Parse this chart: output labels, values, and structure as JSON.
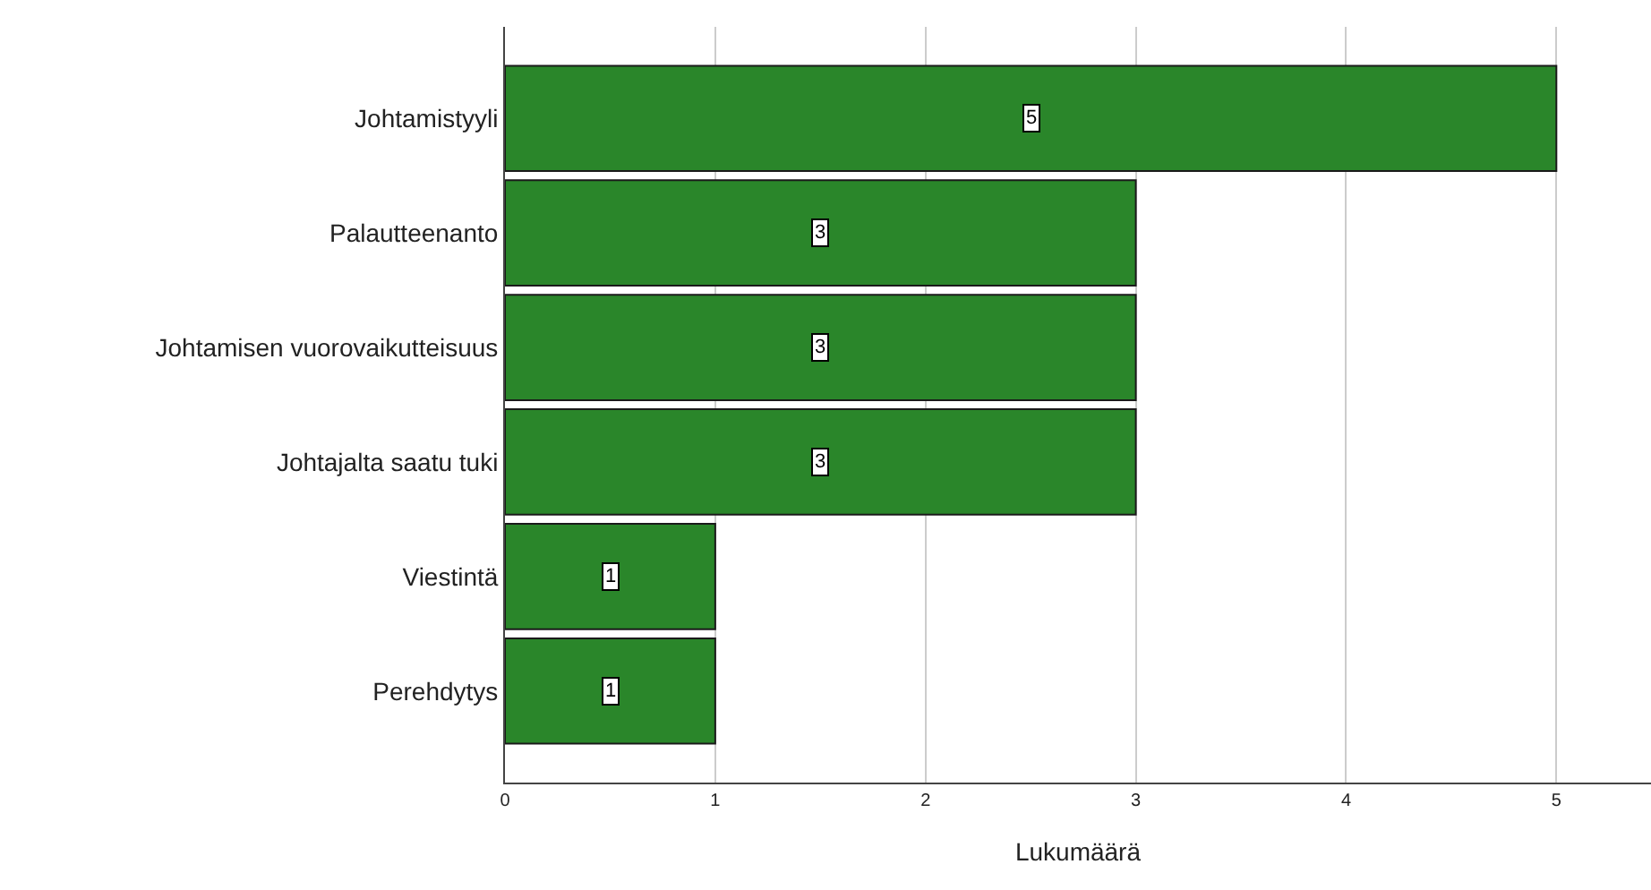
{
  "chart_data": {
    "type": "bar",
    "orientation": "horizontal",
    "xlabel": "Lukumäärä",
    "categories": [
      "Johtamistyyli",
      "Palautteenanto",
      "Johtamisen vuorovaikutteisuus",
      "Johtajalta saatu tuki",
      "Viestintä",
      "Perehdytys"
    ],
    "values": [
      5,
      3,
      3,
      3,
      1,
      1
    ],
    "color": "#2a862a",
    "xlim": [
      0,
      5.45
    ],
    "xticks": [
      0,
      1,
      2,
      3,
      4,
      5
    ],
    "grid": "x",
    "data_labels": true
  }
}
